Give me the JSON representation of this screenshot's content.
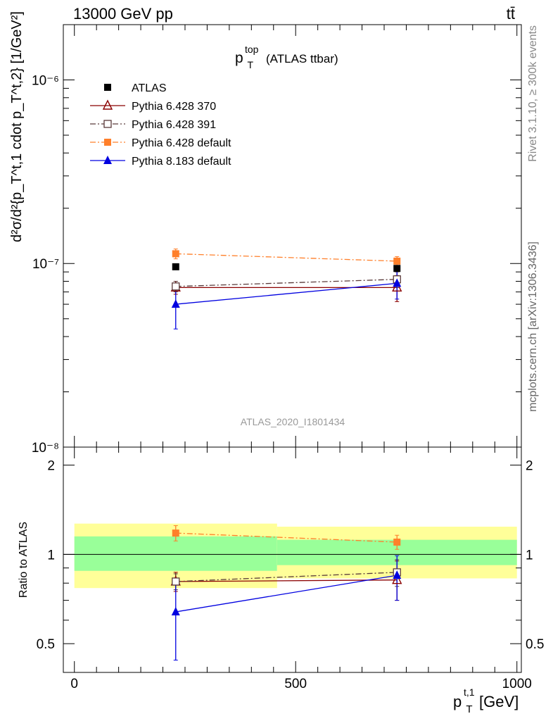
{
  "header": {
    "energy_label": "13000 GeV pp",
    "process_label": "tt̄"
  },
  "side_labels": {
    "rivet": "Rivet 3.1.10, ≥ 300k events",
    "mcplots": "mcplots.cern.ch [arXiv:1306.3436]"
  },
  "chart_data": [
    {
      "type": "line",
      "title": "p_T^top (ATLAS ttbar)",
      "title_main": "p",
      "title_sub": "T",
      "title_sup": "top",
      "title_rest": "(ATLAS ttbar)",
      "analysis_label": "ATLAS_2020_I1801434",
      "ylabel": "d²σ/d²{p_T^t,1 cdot p_T^t,2} [1/GeV²]",
      "yscale": "log",
      "ylim": [
        1e-08,
        2e-06
      ],
      "xlim": [
        -25,
        1010
      ],
      "y_tick_labels": [
        "10⁻⁸",
        "10⁻⁷",
        "10⁻⁶"
      ],
      "y_tick_values": [
        1e-08,
        1e-07,
        1e-06
      ],
      "legend_position": "top-left",
      "x": [
        229,
        729
      ],
      "series": [
        {
          "name": "ATLAS",
          "color": "#000000",
          "marker": "square-filled",
          "line": "none",
          "values": [
            9.6e-08,
            9.4e-08
          ],
          "err_up": [
            0,
            0
          ],
          "err_down": [
            0,
            0
          ]
        },
        {
          "name": "Pythia 6.428 370",
          "color": "#8b0000",
          "marker": "triangle-open",
          "line": "solid",
          "values": [
            7.4e-08,
            7.4e-08
          ],
          "err_up": [
            6e-09,
            1.2e-08
          ],
          "err_down": [
            6e-09,
            1.2e-08
          ]
        },
        {
          "name": "Pythia 6.428 391",
          "color": "#5a3a3a",
          "marker": "square-open",
          "line": "dashdot",
          "values": [
            7.5e-08,
            8.2e-08
          ],
          "err_up": [
            5e-09,
            8e-09
          ],
          "err_down": [
            5e-09,
            8e-09
          ]
        },
        {
          "name": "Pythia 6.428 default",
          "color": "#ff7f2a",
          "marker": "square-filled",
          "line": "dashdot",
          "values": [
            1.13e-07,
            1.03e-07
          ],
          "err_up": [
            7e-09,
            6e-09
          ],
          "err_down": [
            7e-09,
            6e-09
          ]
        },
        {
          "name": "Pythia 8.183 default",
          "color": "#0000e0",
          "marker": "triangle-filled",
          "line": "solid",
          "values": [
            6e-08,
            7.8e-08
          ],
          "err_up": [
            1.6e-08,
            1.3e-08
          ],
          "err_down": [
            1.6e-08,
            1.4e-08
          ]
        }
      ]
    },
    {
      "type": "line",
      "ylabel": "Ratio to ATLAS",
      "xlabel": "p_T^t,1 [GeV]",
      "xlabel_main": "p",
      "xlabel_sub": "T",
      "xlabel_sup": "t,1",
      "xlabel_rest": "[GeV]",
      "yscale": "log",
      "ylim": [
        0.4,
        2.3
      ],
      "xlim": [
        -25,
        1010
      ],
      "x_tick_labels": [
        "0",
        "500",
        "1000"
      ],
      "x_tick_values": [
        0,
        500,
        1000
      ],
      "y_tick_labels": [
        "0.5",
        "1",
        "2"
      ],
      "y_tick_values": [
        0.5,
        1,
        2
      ],
      "bands": [
        {
          "x_from": 0,
          "x_to": 458,
          "yellow": [
            0.77,
            1.27
          ],
          "green": [
            0.88,
            1.15
          ]
        },
        {
          "x_from": 458,
          "x_to": 1000,
          "yellow": [
            0.83,
            1.24
          ],
          "green": [
            0.92,
            1.12
          ]
        }
      ],
      "x": [
        229,
        729
      ],
      "series": [
        {
          "name": "Pythia 6.428 370",
          "values": [
            0.81,
            0.82
          ],
          "err_up": [
            0.06,
            0.13
          ],
          "err_down": [
            0.06,
            0.12
          ]
        },
        {
          "name": "Pythia 6.428 391",
          "values": [
            0.81,
            0.87
          ],
          "err_up": [
            0.05,
            0.09
          ],
          "err_down": [
            0.05,
            0.09
          ]
        },
        {
          "name": "Pythia 6.428 default",
          "values": [
            1.18,
            1.1
          ],
          "err_up": [
            0.07,
            0.06
          ],
          "err_down": [
            0.07,
            0.06
          ]
        },
        {
          "name": "Pythia 8.183 default",
          "values": [
            0.64,
            0.85
          ],
          "err_up": [
            0.16,
            0.14
          ],
          "err_down": [
            0.2,
            0.15
          ]
        }
      ]
    }
  ]
}
